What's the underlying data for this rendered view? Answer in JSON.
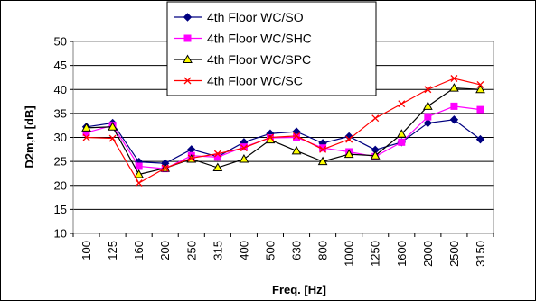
{
  "chart_data": {
    "type": "line",
    "xlabel": "Freq. [Hz]",
    "ylabel": "D2m,n [dB]",
    "ylim": [
      10,
      50
    ],
    "yticks": [
      10,
      15,
      20,
      25,
      30,
      35,
      40,
      45,
      50
    ],
    "grid": "horizontal",
    "legend_position": "top-center",
    "categories": [
      "100",
      "125",
      "160",
      "200",
      "250",
      "315",
      "400",
      "500",
      "630",
      "800",
      "1000",
      "1250",
      "1600",
      "2000",
      "2500",
      "3150"
    ],
    "series": [
      {
        "name": "4th Floor  WC/SO",
        "color": "#000080",
        "marker": "diamond",
        "values": [
          32.2,
          33.0,
          24.9,
          24.6,
          27.5,
          26.0,
          29.0,
          30.8,
          31.2,
          28.8,
          30.2,
          27.4,
          29.0,
          33.0,
          33.7,
          29.6
        ]
      },
      {
        "name": "4th Floor  WC/SHC",
        "color": "#ff00ff",
        "marker": "square",
        "values": [
          31.0,
          32.5,
          24.0,
          23.5,
          26.2,
          25.9,
          28.0,
          29.9,
          30.0,
          27.8,
          27.0,
          26.0,
          29.0,
          34.3,
          36.5,
          35.8
        ]
      },
      {
        "name": "4th Floor  WC/SPC",
        "color": "#000000",
        "marker": "triangle",
        "markerFill": "#ffff00",
        "values": [
          32.0,
          32.2,
          22.3,
          23.6,
          25.5,
          23.7,
          25.5,
          29.5,
          27.2,
          25.0,
          26.5,
          26.2,
          30.7,
          36.5,
          40.3,
          40.0
        ]
      },
      {
        "name": "4th Floor  WC/SC",
        "color": "#ff0000",
        "marker": "x",
        "values": [
          30.0,
          29.8,
          20.5,
          23.6,
          25.7,
          26.6,
          27.8,
          30.0,
          30.3,
          27.5,
          29.6,
          34.0,
          37.0,
          40.0,
          42.3,
          41.0
        ]
      }
    ]
  }
}
